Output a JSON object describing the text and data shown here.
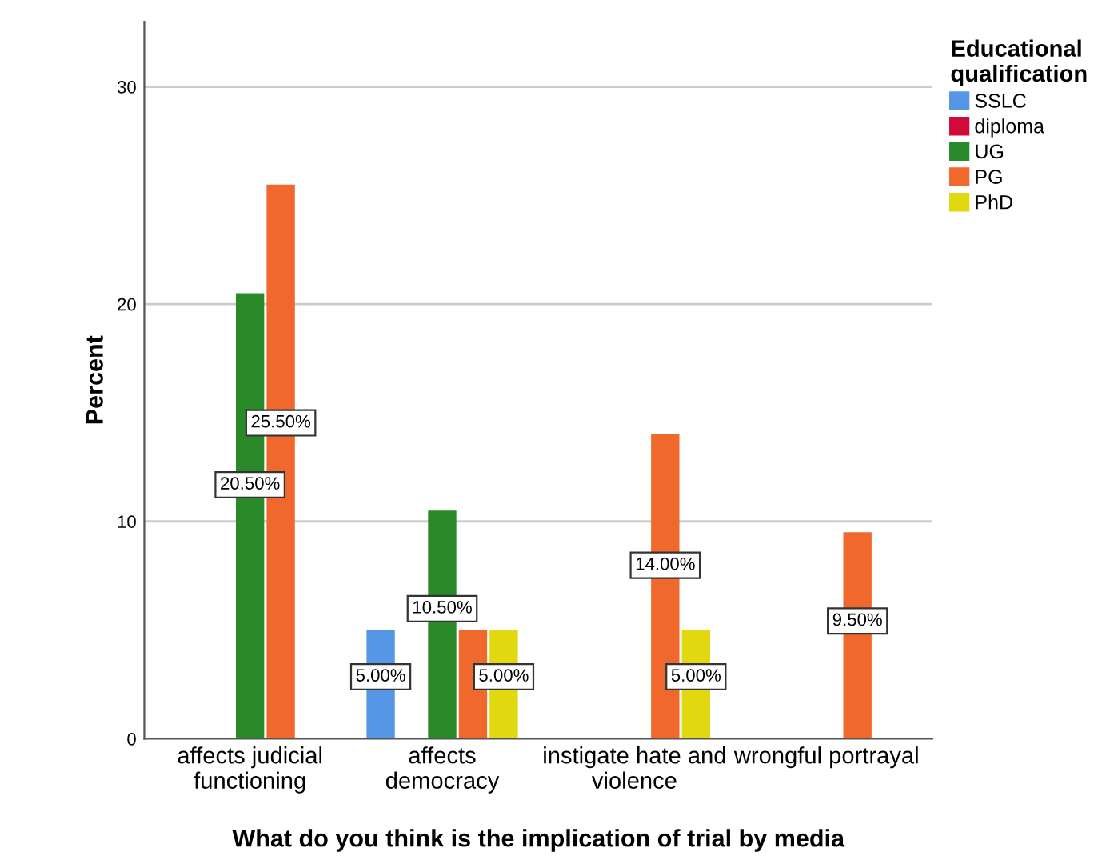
{
  "chart_data": {
    "type": "bar",
    "xlabel": "What do you think is the implication of trial by media",
    "ylabel": "Percent",
    "legend_title": "Educational\nqualification",
    "categories": [
      "affects judicial\nfunctioning",
      "affects\ndemocracy",
      "instigate hate and\nviolence",
      "wrongful portrayal"
    ],
    "series": [
      {
        "name": "SSLC",
        "color": "#5596e6",
        "values": [
          null,
          5.0,
          null,
          null
        ],
        "value_labels": [
          null,
          "5.00%",
          null,
          null
        ]
      },
      {
        "name": "diploma",
        "color": "#d10a3a",
        "values": [
          null,
          null,
          null,
          null
        ],
        "value_labels": [
          null,
          null,
          null,
          null
        ]
      },
      {
        "name": "UG",
        "color": "#2a8a2a",
        "values": [
          20.5,
          10.5,
          null,
          null
        ],
        "value_labels": [
          "20.50%",
          "10.50%",
          null,
          null
        ]
      },
      {
        "name": "PG",
        "color": "#f0682c",
        "values": [
          25.5,
          5.0,
          14.0,
          9.5
        ],
        "value_labels": [
          "25.50%",
          null,
          "14.00%",
          "9.50%"
        ]
      },
      {
        "name": "PhD",
        "color": "#e1d80f",
        "values": [
          null,
          5.0,
          5.0,
          null
        ],
        "value_labels": [
          null,
          "5.00%",
          "5.00%",
          null
        ]
      }
    ],
    "ylim": [
      0,
      33
    ],
    "yticks": [
      0,
      10,
      20,
      30
    ],
    "grid": "y",
    "legend": "top right"
  }
}
